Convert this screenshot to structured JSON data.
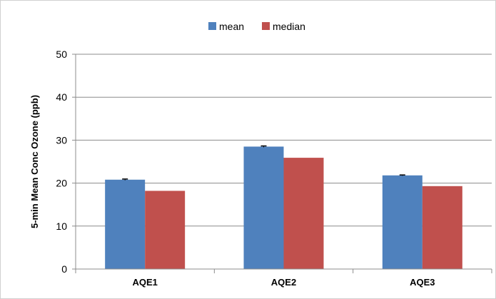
{
  "chart_data": {
    "type": "bar",
    "categories": [
      "AQE1",
      "AQE2",
      "AQE3"
    ],
    "series": [
      {
        "name": "mean",
        "values": [
          20.8,
          28.5,
          21.8
        ],
        "error": [
          0.15,
          0.15,
          0.1
        ],
        "color": "#4F81BD"
      },
      {
        "name": "median",
        "values": [
          18.2,
          25.9,
          19.3
        ],
        "color": "#C0504D"
      }
    ],
    "title": "",
    "xlabel": "",
    "ylabel": "5-min Mean Conc Ozone (ppb)",
    "ylim": [
      0,
      50
    ],
    "yticks": [
      0,
      10,
      20,
      30,
      40,
      50
    ],
    "grid": true,
    "legend_position": "top-center"
  }
}
